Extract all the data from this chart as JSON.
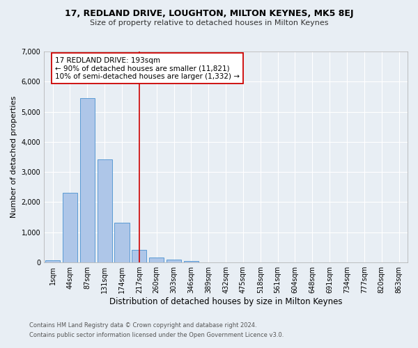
{
  "title1": "17, REDLAND DRIVE, LOUGHTON, MILTON KEYNES, MK5 8EJ",
  "title2": "Size of property relative to detached houses in Milton Keynes",
  "xlabel": "Distribution of detached houses by size in Milton Keynes",
  "ylabel": "Number of detached properties",
  "footnote1": "Contains HM Land Registry data © Crown copyright and database right 2024.",
  "footnote2": "Contains public sector information licensed under the Open Government Licence v3.0.",
  "bar_labels": [
    "1sqm",
    "44sqm",
    "87sqm",
    "131sqm",
    "174sqm",
    "217sqm",
    "260sqm",
    "303sqm",
    "346sqm",
    "389sqm",
    "432sqm",
    "475sqm",
    "518sqm",
    "561sqm",
    "604sqm",
    "648sqm",
    "691sqm",
    "734sqm",
    "777sqm",
    "820sqm",
    "863sqm"
  ],
  "bar_values": [
    75,
    2300,
    5450,
    3430,
    1310,
    415,
    175,
    95,
    55,
    0,
    0,
    0,
    0,
    0,
    0,
    0,
    0,
    0,
    0,
    0,
    0
  ],
  "bar_color": "#aec6e8",
  "bar_edge_color": "#5a9bd4",
  "vline_x": 5.0,
  "vline_color": "#cc0000",
  "annotation_title": "17 REDLAND DRIVE: 193sqm",
  "annotation_line1": "← 90% of detached houses are smaller (11,821)",
  "annotation_line2": "10% of semi-detached houses are larger (1,332) →",
  "ylim": [
    0,
    7000
  ],
  "yticks": [
    0,
    1000,
    2000,
    3000,
    4000,
    5000,
    6000,
    7000
  ],
  "bg_color": "#e8eef4",
  "grid_color": "#ffffff",
  "annotation_box_color": "#ffffff",
  "annotation_box_edge": "#cc0000"
}
